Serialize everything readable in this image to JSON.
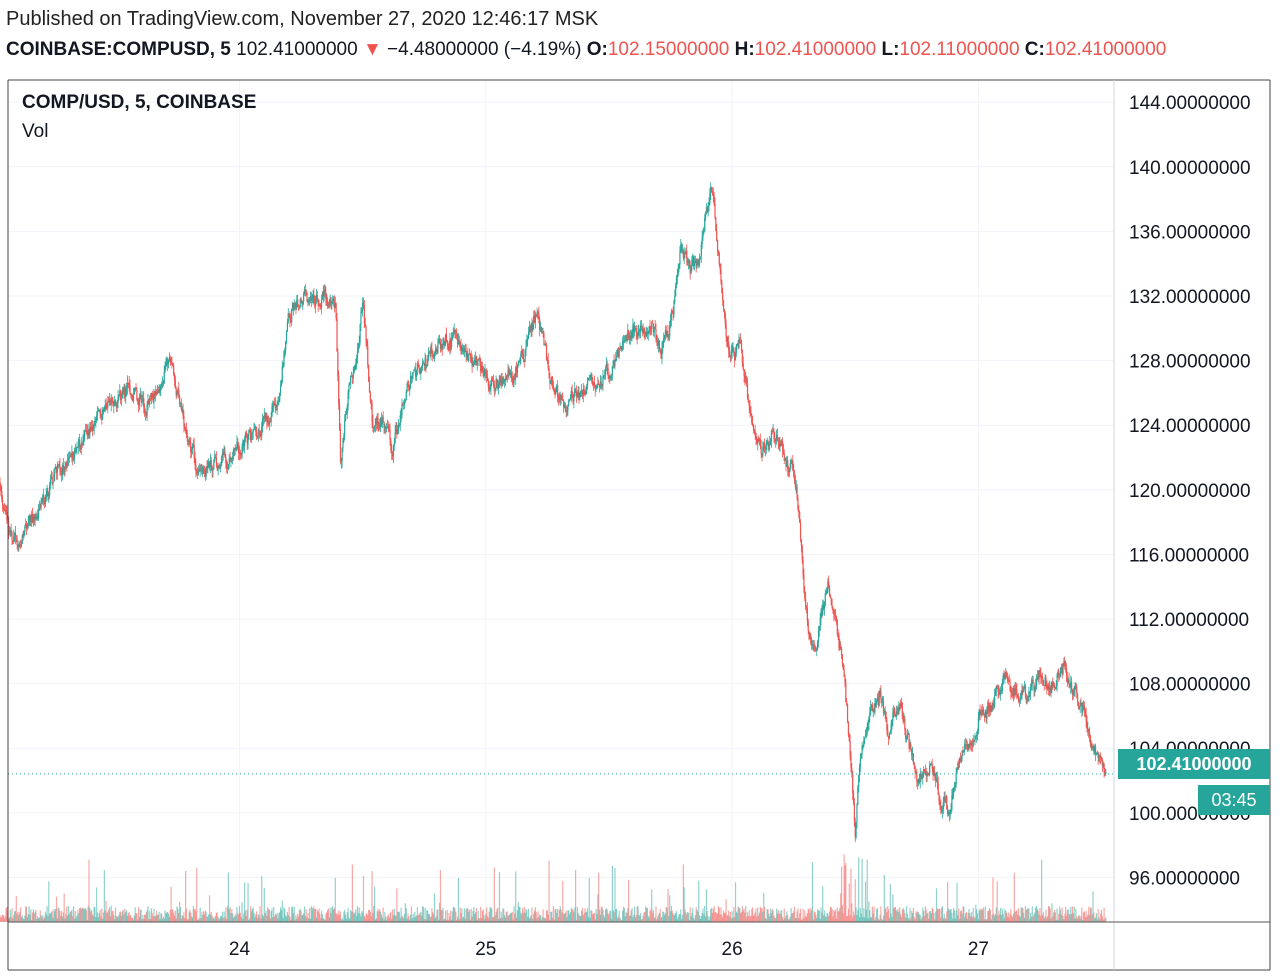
{
  "header": {
    "published": "Published on TradingView.com, November 27, 2020 12:46:17 MSK",
    "symbol": "COINBASE:COMPUSD, 5",
    "last": "102.41000000",
    "change": "−4.48000000 (−4.19%)",
    "open_label": "O:",
    "open": "102.15000000",
    "high_label": "H:",
    "high": "102.41000000",
    "low_label": "L:",
    "low": "102.11000000",
    "close_label": "C:",
    "close": "102.41000000"
  },
  "legend": {
    "title": "COMP/USD, 5, COINBASE",
    "volume": "Vol"
  },
  "badges": {
    "price": "102.41000000",
    "countdown": "03:45"
  },
  "colors": {
    "up": "#26a69a",
    "down": "#ef5350",
    "grid": "#f0f3fa",
    "border": "#444444"
  },
  "chart_data": {
    "type": "candlestick",
    "title": "COMP/USD, 5, COINBASE",
    "ylim": [
      92,
      145
    ],
    "y_ticks": [
      {
        "v": 96,
        "label": "96.00000000"
      },
      {
        "v": 100,
        "label": "100.00000000"
      },
      {
        "v": 104,
        "label": "104.00000000"
      },
      {
        "v": 108,
        "label": "108.00000000"
      },
      {
        "v": 112,
        "label": "112.00000000"
      },
      {
        "v": 116,
        "label": "116.00000000"
      },
      {
        "v": 120,
        "label": "120.00000000"
      },
      {
        "v": 124,
        "label": "124.00000000"
      },
      {
        "v": 128,
        "label": "128.00000000"
      },
      {
        "v": 132,
        "label": "132.00000000"
      },
      {
        "v": 136,
        "label": "136.00000000"
      },
      {
        "v": 140,
        "label": "140.00000000"
      },
      {
        "v": 144,
        "label": "144.00000000"
      }
    ],
    "x_range_days": [
      23.05,
      27.55
    ],
    "x_ticks": [
      {
        "day": 24,
        "label": "24"
      },
      {
        "day": 25,
        "label": "25"
      },
      {
        "day": 26,
        "label": "26"
      },
      {
        "day": 27,
        "label": "27"
      }
    ],
    "last_price": 102.41,
    "price_path": [
      [
        23.0,
        123.5
      ],
      [
        23.04,
        118.5
      ],
      [
        23.08,
        116.5
      ],
      [
        23.13,
        117.5
      ],
      [
        23.18,
        118.5
      ],
      [
        23.25,
        121.0
      ],
      [
        23.32,
        122.0
      ],
      [
        23.4,
        124.0
      ],
      [
        23.48,
        125.5
      ],
      [
        23.55,
        126.0
      ],
      [
        23.62,
        125.0
      ],
      [
        23.68,
        127.0
      ],
      [
        23.72,
        128.5
      ],
      [
        23.78,
        123.5
      ],
      [
        23.83,
        121.5
      ],
      [
        23.9,
        121.5
      ],
      [
        23.96,
        122.0
      ],
      [
        24.03,
        123.0
      ],
      [
        24.12,
        124.5
      ],
      [
        24.16,
        126.0
      ],
      [
        24.2,
        131.0
      ],
      [
        24.25,
        132.0
      ],
      [
        24.3,
        131.5
      ],
      [
        24.35,
        132.0
      ],
      [
        24.39,
        131.5
      ],
      [
        24.41,
        121.5
      ],
      [
        24.44,
        126.0
      ],
      [
        24.48,
        129.0
      ],
      [
        24.5,
        132.0
      ],
      [
        24.54,
        124.0
      ],
      [
        24.58,
        124.5
      ],
      [
        24.62,
        122.5
      ],
      [
        24.66,
        125.0
      ],
      [
        24.7,
        127.0
      ],
      [
        24.76,
        128.0
      ],
      [
        24.84,
        129.5
      ],
      [
        24.92,
        128.5
      ],
      [
        24.97,
        127.5
      ],
      [
        25.04,
        126.5
      ],
      [
        25.12,
        127.5
      ],
      [
        25.17,
        129.0
      ],
      [
        25.21,
        131.0
      ],
      [
        25.24,
        128.5
      ],
      [
        25.27,
        126.5
      ],
      [
        25.32,
        125.0
      ],
      [
        25.36,
        126.0
      ],
      [
        25.42,
        126.5
      ],
      [
        25.48,
        127.0
      ],
      [
        25.53,
        128.0
      ],
      [
        25.58,
        129.5
      ],
      [
        25.62,
        130.0
      ],
      [
        25.67,
        130.5
      ],
      [
        25.71,
        128.5
      ],
      [
        25.74,
        129.5
      ],
      [
        25.77,
        132.0
      ],
      [
        25.79,
        135.0
      ],
      [
        25.83,
        134.0
      ],
      [
        25.86,
        134.0
      ],
      [
        25.89,
        137.0
      ],
      [
        25.92,
        138.5
      ],
      [
        25.95,
        134.0
      ],
      [
        25.98,
        129.0
      ],
      [
        26.01,
        128.0
      ],
      [
        26.03,
        129.5
      ],
      [
        26.07,
        125.0
      ],
      [
        26.12,
        122.0
      ],
      [
        26.16,
        123.5
      ],
      [
        26.2,
        123.0
      ],
      [
        26.23,
        121.5
      ],
      [
        26.26,
        120.5
      ],
      [
        26.28,
        117.0
      ],
      [
        26.3,
        112.5
      ],
      [
        26.33,
        110.0
      ],
      [
        26.36,
        112.0
      ],
      [
        26.39,
        114.0
      ],
      [
        26.42,
        112.0
      ],
      [
        26.45,
        109.0
      ],
      [
        26.48,
        104.0
      ],
      [
        26.5,
        99.0
      ],
      [
        26.52,
        103.0
      ],
      [
        26.56,
        106.0
      ],
      [
        26.6,
        107.0
      ],
      [
        26.64,
        105.0
      ],
      [
        26.68,
        107.0
      ],
      [
        26.72,
        104.0
      ],
      [
        26.76,
        102.0
      ],
      [
        26.8,
        103.0
      ],
      [
        26.84,
        101.0
      ],
      [
        26.88,
        100.0
      ],
      [
        26.92,
        103.0
      ],
      [
        26.96,
        104.0
      ],
      [
        27.0,
        106.0
      ],
      [
        27.05,
        106.5
      ],
      [
        27.1,
        108.5
      ],
      [
        27.15,
        107.5
      ],
      [
        27.2,
        107.0
      ],
      [
        27.25,
        108.5
      ],
      [
        27.3,
        108.0
      ],
      [
        27.35,
        109.0
      ],
      [
        27.39,
        107.5
      ],
      [
        27.43,
        106.0
      ],
      [
        27.46,
        104.0
      ],
      [
        27.49,
        103.5
      ],
      [
        27.52,
        102.41
      ]
    ]
  }
}
